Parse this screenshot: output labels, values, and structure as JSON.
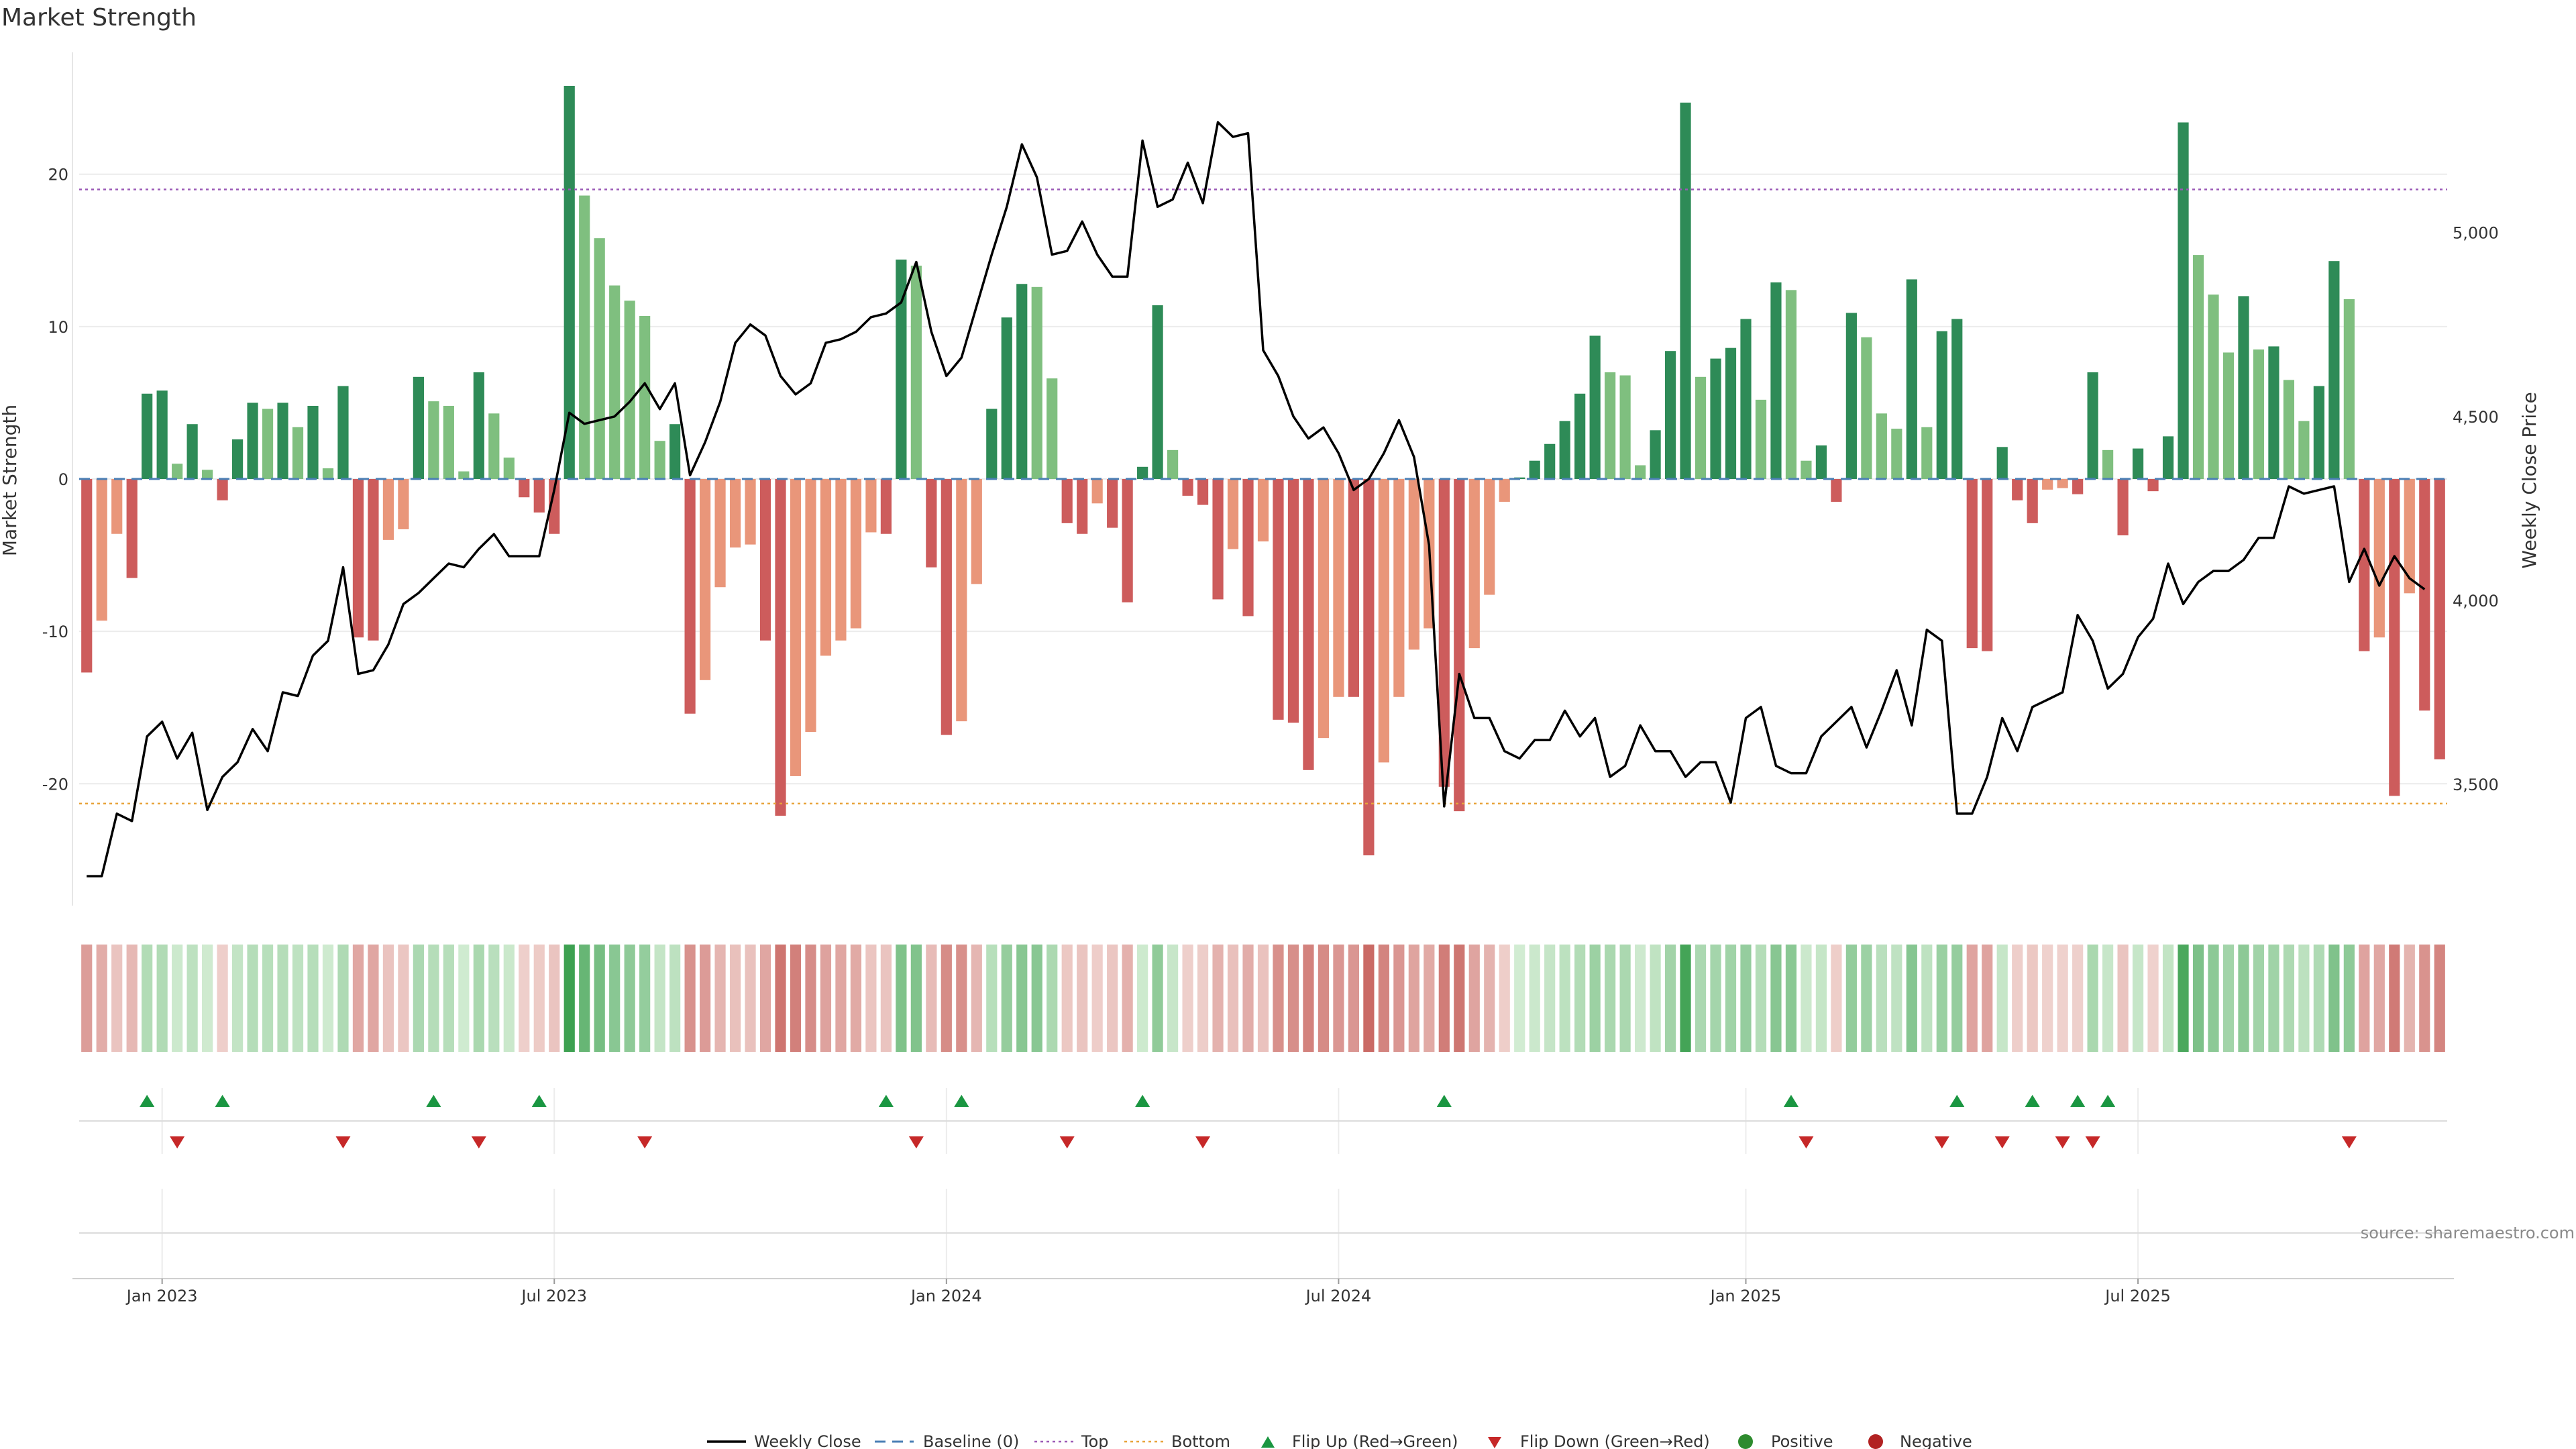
{
  "title": "Market Strength",
  "source": "source: sharemaestro.com",
  "colors": {
    "strong_green": "#2e8b57",
    "light_green": "#7fbf7f",
    "strong_red": "#cd5c5c",
    "light_red": "#e9967a",
    "price_line": "#000000",
    "baseline": "#4a7fb5",
    "top": "#9b59b6",
    "bottom": "#e8a33a",
    "marker_up": "#1a9641",
    "marker_down": "#c62828",
    "positive": "#2e8b2e",
    "negative": "#b22222"
  },
  "legend": {
    "weekly_close": "Weekly Close",
    "baseline": "Baseline (0)",
    "top": "Top",
    "bottom": "Bottom",
    "flip_up": "Flip Up (Red→Green)",
    "flip_down": "Flip Down (Green→Red)",
    "positive": "Positive",
    "negative": "Negative"
  },
  "chart_data": {
    "type": "bar",
    "start_date": "2022-11-28",
    "x_ticks": [
      {
        "label": "Jan 2023",
        "date": "2023-01-02"
      },
      {
        "label": "Jul 2023",
        "date": "2023-07-03"
      },
      {
        "label": "Jan 2024",
        "date": "2024-01-01"
      },
      {
        "label": "Jul 2024",
        "date": "2024-07-01"
      },
      {
        "label": "Jan 2025",
        "date": "2025-01-06"
      },
      {
        "label": "Jul 2025",
        "date": "2025-07-07"
      }
    ],
    "left_axis": {
      "label": "Market Strength",
      "ylim": [
        -28,
        28
      ],
      "ticks": [
        -20,
        -10,
        0,
        10,
        20
      ]
    },
    "right_axis": {
      "label": "Weekly Close Price",
      "ylim": [
        3170,
        5490
      ],
      "ticks": [
        3500,
        4000,
        4500,
        5000
      ],
      "tick_labels": [
        "3,500",
        "4,000",
        "4,500",
        "5,000"
      ]
    },
    "top_level": 19,
    "bottom_level": -21.3,
    "baseline": 0,
    "strength": [
      -12.7,
      -9.3,
      -3.6,
      -6.5,
      5.6,
      5.8,
      1.0,
      3.6,
      0.6,
      -1.4,
      2.6,
      5.0,
      4.6,
      5.0,
      3.4,
      4.8,
      0.7,
      6.1,
      -10.4,
      -10.6,
      -4.0,
      -3.3,
      6.7,
      5.1,
      4.8,
      0.5,
      7.0,
      4.3,
      1.4,
      -1.2,
      -2.2,
      -3.6,
      25.8,
      18.6,
      15.8,
      12.7,
      11.7,
      10.7,
      2.5,
      3.6,
      -15.4,
      -13.2,
      -7.1,
      -4.5,
      -4.3,
      -10.6,
      -22.1,
      -19.5,
      -16.6,
      -11.6,
      -10.6,
      -9.8,
      -3.5,
      -3.6,
      14.4,
      14.0,
      -5.8,
      -16.8,
      -15.9,
      -6.9,
      4.6,
      10.6,
      12.8,
      12.6,
      6.6,
      -2.9,
      -3.6,
      -1.6,
      -3.2,
      -8.1,
      0.8,
      11.4,
      1.9,
      -1.1,
      -1.7,
      -7.9,
      -4.6,
      -9.0,
      -4.1,
      -15.8,
      -16.0,
      -19.1,
      -17.0,
      -14.3,
      -14.3,
      -24.7,
      -18.6,
      -14.3,
      -11.2,
      -9.8,
      -20.2,
      -21.8,
      -11.1,
      -7.6,
      -1.5,
      0.1,
      1.2,
      2.3,
      3.8,
      5.6,
      9.4,
      7.0,
      6.8,
      0.9,
      3.2,
      8.4,
      24.7,
      6.7,
      7.9,
      8.6,
      10.5,
      5.2,
      12.9,
      12.4,
      1.2,
      2.2,
      -1.5,
      10.9,
      9.3,
      4.3,
      3.3,
      13.1,
      3.4,
      9.7,
      10.5,
      -11.1,
      -11.3,
      2.1,
      -1.4,
      -2.9,
      -0.7,
      -0.6,
      -1.0,
      7.0,
      1.9,
      -3.7,
      2.0,
      -0.8,
      2.8,
      23.4,
      14.7,
      12.1,
      8.3,
      12.0,
      8.5,
      8.7,
      6.5,
      3.8,
      6.1,
      14.3,
      11.8,
      -11.3,
      -10.4,
      -20.8,
      -7.5,
      -15.2,
      -18.4
    ],
    "weekly_close": [
      3250,
      3250,
      3420,
      3400,
      3630,
      3670,
      3570,
      3640,
      3430,
      3520,
      3560,
      3650,
      3590,
      3750,
      3740,
      3850,
      3890,
      4090,
      3800,
      3810,
      3880,
      3990,
      4020,
      4060,
      4100,
      4090,
      4140,
      4180,
      4120,
      4120,
      4120,
      4300,
      4510,
      4480,
      4490,
      4500,
      4540,
      4590,
      4520,
      4590,
      4340,
      4430,
      4540,
      4700,
      4750,
      4720,
      4610,
      4560,
      4590,
      4700,
      4710,
      4730,
      4770,
      4780,
      4810,
      4920,
      4730,
      4610,
      4660,
      4800,
      4940,
      5070,
      5240,
      5150,
      4940,
      4950,
      5030,
      4940,
      4880,
      4880,
      5250,
      5070,
      5090,
      5190,
      5080,
      5300,
      5260,
      5270,
      4680,
      4610,
      4500,
      4440,
      4470,
      4400,
      4300,
      4330,
      4400,
      4490,
      4390,
      4150,
      3440,
      3800,
      3680,
      3680,
      3590,
      3570,
      3620,
      3620,
      3700,
      3630,
      3680,
      3520,
      3550,
      3660,
      3590,
      3590,
      3520,
      3560,
      3560,
      3450,
      3680,
      3710,
      3550,
      3530,
      3530,
      3630,
      3670,
      3710,
      3600,
      3700,
      3810,
      3660,
      3920,
      3890,
      3420,
      3420,
      3520,
      3680,
      3590,
      3710,
      3730,
      3750,
      3960,
      3890,
      3760,
      3800,
      3900,
      3950,
      4100,
      3990,
      4050,
      4080,
      4080,
      4110,
      4170,
      4170,
      4310,
      4290,
      4300,
      4310,
      4050,
      4140,
      4040,
      4120,
      4060,
      4030
    ],
    "flip_up": [
      "2022-12-26",
      "2023-01-30",
      "2023-05-08",
      "2023-06-26",
      "2023-12-04",
      "2024-01-08",
      "2024-04-01",
      "2024-08-19",
      "2025-01-27",
      "2025-04-14",
      "2025-05-19",
      "2025-06-09",
      "2025-06-23"
    ],
    "flip_down": [
      "2023-01-09",
      "2023-03-27",
      "2023-05-29",
      "2023-08-14",
      "2023-12-18",
      "2024-02-26",
      "2024-04-29",
      "2025-02-03",
      "2025-04-07",
      "2025-05-05",
      "2025-06-02",
      "2025-06-16",
      "2025-10-13"
    ]
  }
}
